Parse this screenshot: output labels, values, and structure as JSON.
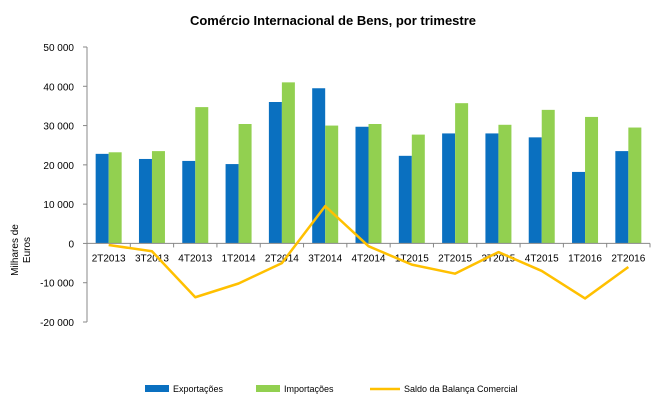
{
  "chart_data": {
    "type": "bar",
    "title": "Comércio Internacional de Bens, por trimestre",
    "ylabel_lines": [
      "Milhares de",
      "Euros"
    ],
    "xlabel": "",
    "categories": [
      "2T2013",
      "3T2013",
      "4T2013",
      "1T2014",
      "2T2014",
      "3T2014",
      "4T2014",
      "1T2015",
      "2T2015",
      "3T2015",
      "4T2015",
      "1T2016",
      "2T2016"
    ],
    "ylim": [
      -20000,
      50000
    ],
    "ytick_values": [
      50000,
      40000,
      30000,
      20000,
      10000,
      0,
      -10000,
      -20000
    ],
    "ytick_labels": [
      "50 000",
      "40 000",
      "30 000",
      "20 000",
      "10 000",
      "0",
      "-10 000",
      "-20 000"
    ],
    "grid": false,
    "legend_position": "bottom",
    "series": [
      {
        "name": "Exportações",
        "kind": "bar",
        "color": "#0a70c0",
        "values": [
          22800,
          21500,
          21000,
          20200,
          36000,
          39500,
          29700,
          22300,
          28000,
          28000,
          27000,
          18200,
          23500
        ]
      },
      {
        "name": "Importações",
        "kind": "bar",
        "color": "#92d050",
        "values": [
          23200,
          23500,
          34700,
          30400,
          41000,
          30000,
          30400,
          27700,
          35700,
          30200,
          34000,
          32200,
          29500
        ]
      },
      {
        "name": "Saldo da Balança Comercial",
        "kind": "line",
        "color": "#ffc000",
        "values": [
          -400,
          -2000,
          -13700,
          -10200,
          -5000,
          9500,
          -700,
          -5400,
          -7700,
          -2200,
          -7000,
          -14000,
          -6000
        ]
      }
    ]
  }
}
